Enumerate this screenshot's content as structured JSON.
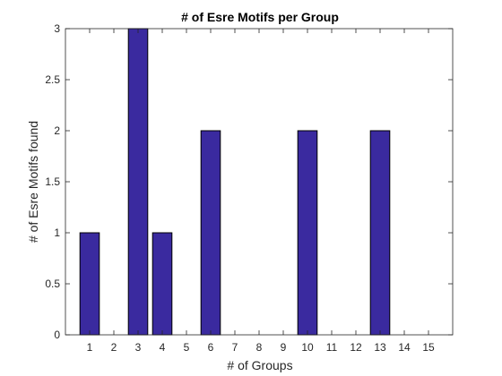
{
  "chart_data": {
    "type": "bar",
    "title": "# of Esre Motifs per Group",
    "xlabel": "# of Groups",
    "ylabel": "# of Esre Motifs found",
    "categories": [
      "1",
      "2",
      "3",
      "4",
      "5",
      "6",
      "7",
      "8",
      "9",
      "10",
      "11",
      "12",
      "13",
      "14",
      "15"
    ],
    "values": [
      1,
      0,
      3,
      1,
      0,
      2,
      0,
      0,
      0,
      2,
      0,
      0,
      2,
      0,
      0
    ],
    "ylim": [
      0,
      3
    ],
    "yticks": [
      "0",
      "0.5",
      "1",
      "1.5",
      "2",
      "2.5",
      "3"
    ],
    "grid": false,
    "bar_color": "#3A2A9F",
    "bar_edge_color": "#000000"
  }
}
